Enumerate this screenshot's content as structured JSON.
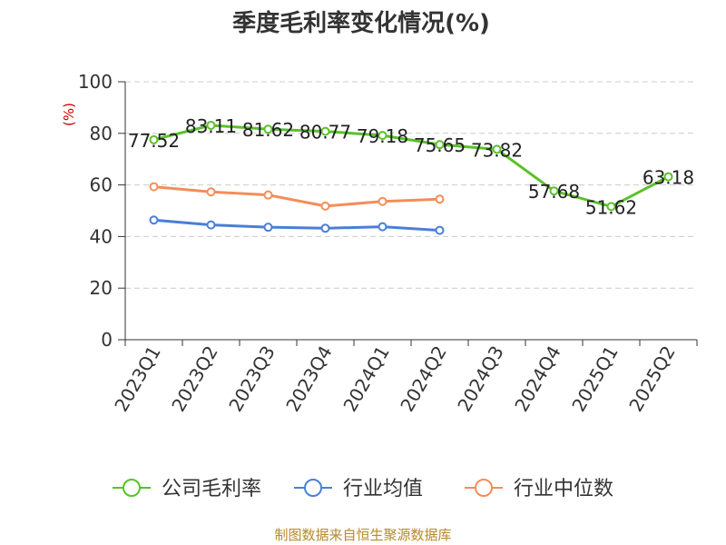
{
  "chart_data": {
    "type": "line",
    "title": "季度毛利率变化情况(%)",
    "ylabel": "(%)",
    "xlabel": "",
    "ylim": [
      0,
      100
    ],
    "yticks": [
      0,
      20,
      40,
      60,
      80,
      100
    ],
    "grid": true,
    "legend_position": "bottom",
    "categories": [
      "2023Q1",
      "2023Q2",
      "2023Q3",
      "2023Q4",
      "2024Q1",
      "2024Q2",
      "2024Q3",
      "2024Q4",
      "2025Q1",
      "2025Q2"
    ],
    "series": [
      {
        "name": "公司毛利率",
        "color": "#5ac12a",
        "data_labels": true,
        "values": [
          77.52,
          83.11,
          81.62,
          80.77,
          79.18,
          75.65,
          73.82,
          57.68,
          51.62,
          63.18
        ]
      },
      {
        "name": "行业均值",
        "color": "#4a7fd6",
        "data_labels": false,
        "values": [
          46.4,
          44.5,
          43.6,
          43.2,
          43.8,
          42.4,
          null,
          null,
          null,
          null
        ]
      },
      {
        "name": "行业中位数",
        "color": "#f28e5a",
        "data_labels": false,
        "values": [
          59.3,
          57.3,
          56.1,
          51.8,
          53.6,
          54.5,
          null,
          null,
          null,
          null
        ]
      }
    ]
  },
  "source_text": "制图数据来自恒生聚源数据库"
}
